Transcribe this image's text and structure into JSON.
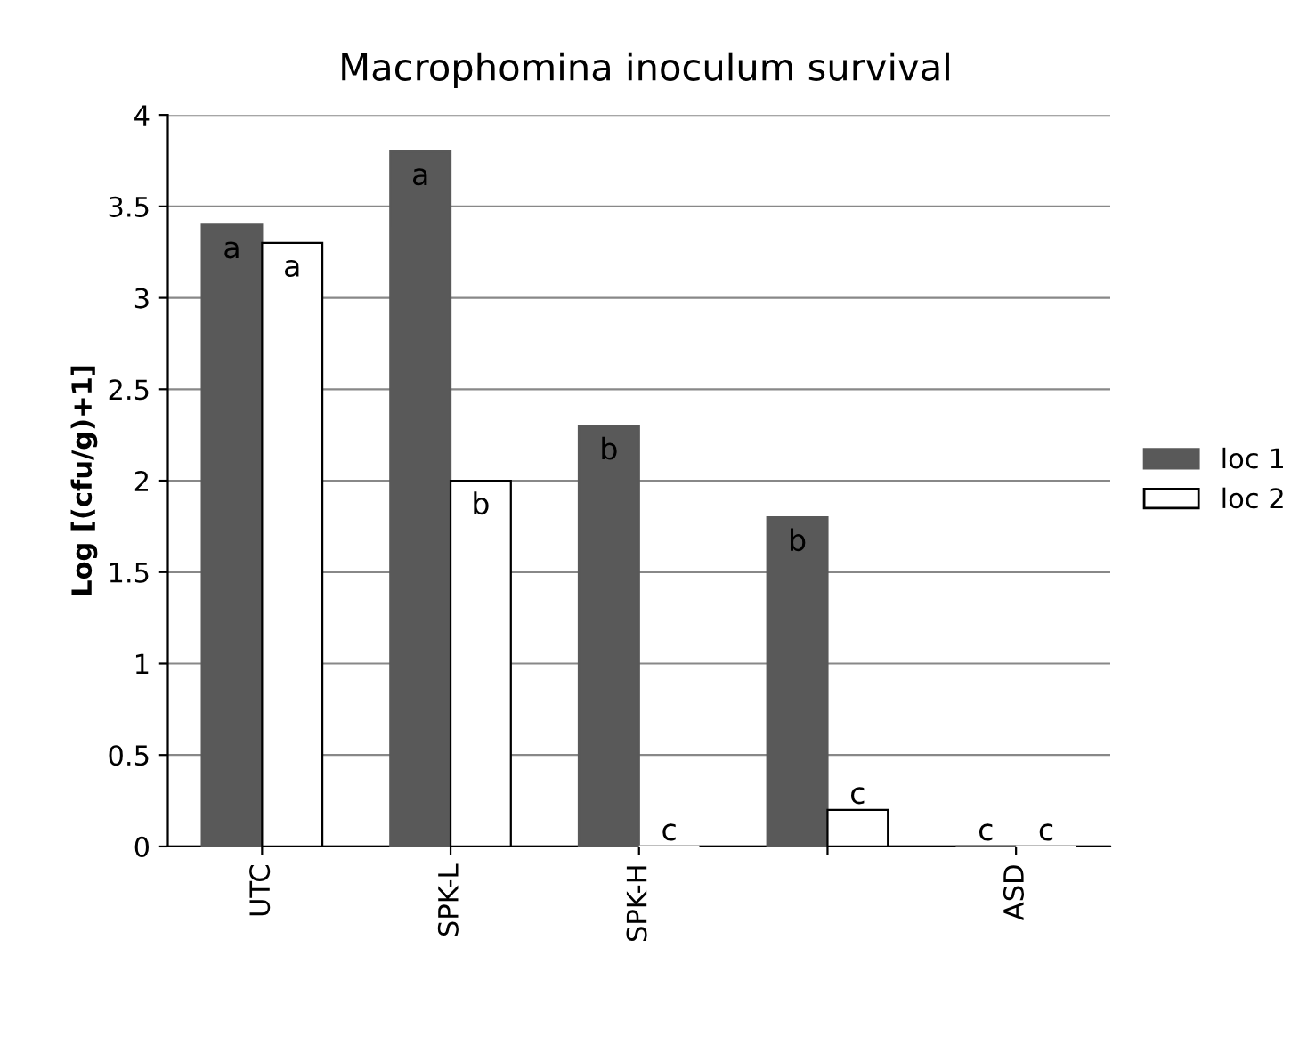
{
  "chart_data": {
    "type": "bar",
    "title": "Macrophomina inoculum survival",
    "ylabel": "Log [(cfu/g)+1]",
    "categories": [
      "UTC",
      "SPK-L",
      "SPK-H",
      null,
      "ASD"
    ],
    "series": [
      {
        "name": "loc 1",
        "color": "#595959",
        "values": [
          3.4,
          3.8,
          2.3,
          1.8,
          0
        ],
        "value_labels": [
          "a",
          "a",
          "b",
          "b",
          "c"
        ]
      },
      {
        "name": "loc 2",
        "color": "#ffffff",
        "values": [
          3.3,
          2.0,
          0,
          0.2,
          0
        ],
        "value_labels": [
          "a",
          "b",
          "c",
          "c",
          "c"
        ]
      }
    ],
    "ylim": [
      0,
      4
    ],
    "yticks": [
      0,
      0.5,
      1,
      1.5,
      2,
      2.5,
      3,
      3.5,
      4
    ],
    "grid": "y",
    "legend": "right"
  }
}
